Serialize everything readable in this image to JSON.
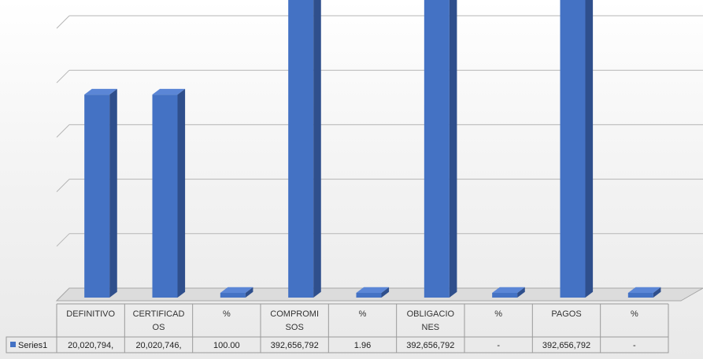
{
  "chart_data": {
    "type": "bar",
    "categories": [
      [
        "DEFINITIVO"
      ],
      [
        "CERTIFICAD",
        "OS"
      ],
      [
        "%"
      ],
      [
        "COMPROMI",
        "SOS"
      ],
      [
        "%"
      ],
      [
        "OBLIGACIO",
        "NES"
      ],
      [
        "%"
      ],
      [
        "PAGOS"
      ],
      [
        "%"
      ]
    ],
    "series": [
      {
        "name": "Series1",
        "values": [
          20020794,
          20020746,
          100,
          392656792,
          1.96,
          392656792,
          0,
          392656792,
          0
        ],
        "value_labels": [
          "20,020,794,",
          "20,020,746,",
          "100.00",
          "392,656,792",
          "1.96",
          "392,656,792",
          "-",
          "392,656,792",
          "-"
        ],
        "color": "#4472c4"
      }
    ],
    "ylim": [
      0,
      25000000
    ],
    "grid": true,
    "legend": "table-left",
    "title": "",
    "xlabel": "",
    "ylabel": ""
  }
}
